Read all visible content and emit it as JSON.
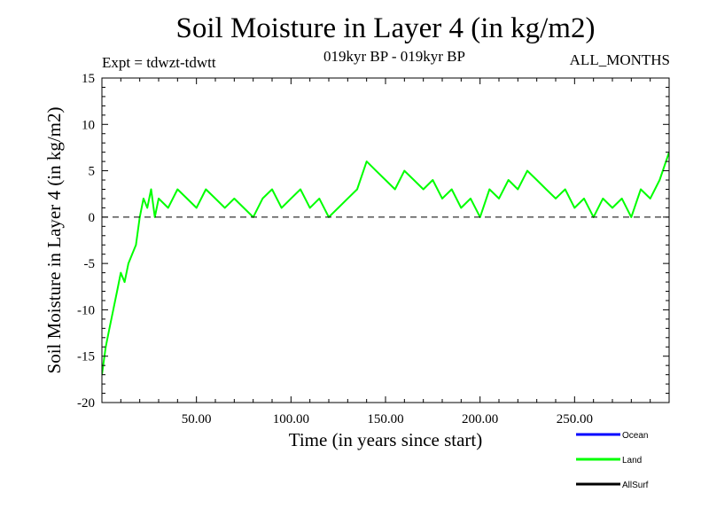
{
  "header": {
    "title": "Soil Moisture in Layer 4 (in kg/m2)",
    "experiment": "Expt = tdwzt-tdwtt",
    "period": "019kyr BP - 019kyr BP",
    "months": "ALL_MONTHS"
  },
  "chart_data": {
    "type": "line",
    "title": "Soil Moisture in Layer 4 (in kg/m2)",
    "xlabel": "Time (in years since start)",
    "ylabel": "Soil Moisture in Layer 4 (in kg/m2)",
    "xlim": [
      0,
      300
    ],
    "ylim": [
      -20,
      15
    ],
    "xticks": [
      50,
      100,
      150,
      200,
      250
    ],
    "xtick_labels": [
      "50.00",
      "100.00",
      "150.00",
      "200.00",
      "250.00"
    ],
    "yticks": [
      -20,
      -15,
      -10,
      -5,
      0,
      5,
      10,
      15
    ],
    "ytick_labels": [
      "-20",
      "-15",
      "-10",
      "-5",
      "0",
      "5",
      "10",
      "15"
    ],
    "reference_line": {
      "y": 0,
      "style": "dashed",
      "color": "#000000"
    },
    "grid": false,
    "legend_position": "bottom-right",
    "colors": {
      "Ocean": "#0000ff",
      "Land": "#00ff00",
      "AllSurf": "#000000"
    },
    "series": [
      {
        "name": "Land",
        "color": "#00ff00",
        "x": [
          0,
          2,
          4,
          6,
          8,
          10,
          12,
          14,
          16,
          18,
          20,
          22,
          24,
          26,
          28,
          30,
          35,
          40,
          45,
          50,
          55,
          60,
          65,
          70,
          75,
          80,
          85,
          90,
          95,
          100,
          105,
          110,
          115,
          120,
          125,
          130,
          135,
          140,
          145,
          150,
          155,
          160,
          165,
          170,
          175,
          180,
          185,
          190,
          195,
          200,
          205,
          210,
          215,
          220,
          225,
          230,
          235,
          240,
          245,
          250,
          255,
          260,
          265,
          270,
          275,
          280,
          285,
          290,
          295,
          300
        ],
        "values": [
          -17,
          -14,
          -12,
          -10,
          -8,
          -6,
          -7,
          -5,
          -4,
          -3,
          0,
          2,
          1,
          3,
          0,
          2,
          1,
          3,
          2,
          1,
          3,
          2,
          1,
          2,
          1,
          0,
          2,
          3,
          1,
          2,
          3,
          1,
          2,
          0,
          1,
          2,
          3,
          6,
          5,
          4,
          3,
          5,
          4,
          3,
          4,
          2,
          3,
          1,
          2,
          0,
          3,
          2,
          4,
          3,
          5,
          4,
          3,
          2,
          3,
          1,
          2,
          0,
          2,
          1,
          2,
          0,
          3,
          2,
          4,
          7
        ]
      }
    ],
    "legend": [
      {
        "name": "Ocean",
        "color": "#0000ff"
      },
      {
        "name": "Land",
        "color": "#00ff00"
      },
      {
        "name": "AllSurf",
        "color": "#000000"
      }
    ]
  }
}
